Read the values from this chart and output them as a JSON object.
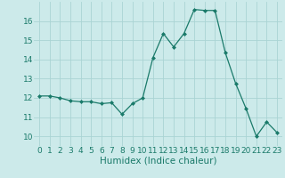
{
  "x": [
    0,
    1,
    2,
    3,
    4,
    5,
    6,
    7,
    8,
    9,
    10,
    11,
    12,
    13,
    14,
    15,
    16,
    17,
    18,
    19,
    20,
    21,
    22,
    23
  ],
  "y": [
    12.1,
    12.1,
    12.0,
    11.85,
    11.8,
    11.8,
    11.7,
    11.75,
    11.15,
    11.7,
    12.0,
    14.1,
    15.35,
    14.65,
    15.35,
    16.6,
    16.55,
    16.55,
    14.35,
    12.75,
    11.45,
    10.0,
    10.75,
    10.2
  ],
  "xlabel": "Humidex (Indice chaleur)",
  "ylim": [
    9.5,
    17.0
  ],
  "xlim": [
    -0.5,
    23.5
  ],
  "yticks": [
    10,
    11,
    12,
    13,
    14,
    15,
    16
  ],
  "xticks": [
    0,
    1,
    2,
    3,
    4,
    5,
    6,
    7,
    8,
    9,
    10,
    11,
    12,
    13,
    14,
    15,
    16,
    17,
    18,
    19,
    20,
    21,
    22,
    23
  ],
  "line_color": "#1a7a6a",
  "marker": "D",
  "marker_size": 2.0,
  "bg_color": "#cceaea",
  "grid_color": "#aad4d4",
  "tick_color": "#1a7a6a",
  "label_color": "#1a7a6a",
  "xlabel_fontsize": 7.5,
  "tick_fontsize": 6.5
}
